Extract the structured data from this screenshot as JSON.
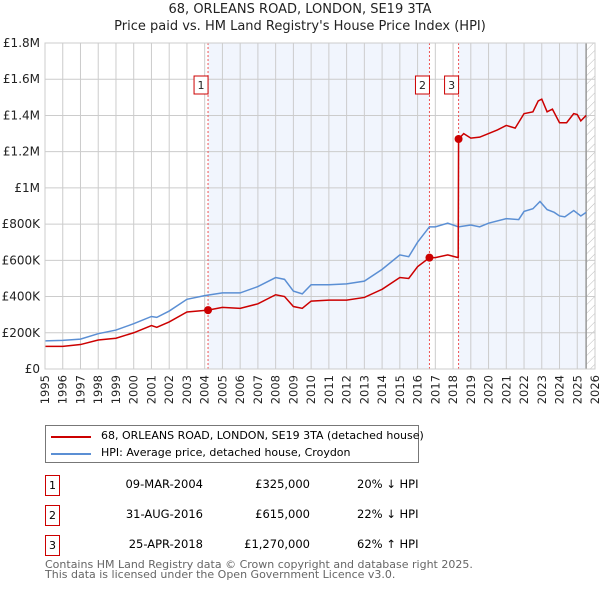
{
  "chart_data": {
    "type": "line",
    "title": "68, ORLEANS ROAD, LONDON, SE19 3TA",
    "subtitle": "Price paid vs. HM Land Registry's House Price Index (HPI)",
    "xlim": [
      1995,
      2026
    ],
    "ylim": [
      0,
      1800000
    ],
    "x_ticks": [
      "1995",
      "1996",
      "1997",
      "1998",
      "1999",
      "2000",
      "2001",
      "2002",
      "2003",
      "2004",
      "2005",
      "2006",
      "2007",
      "2008",
      "2009",
      "2010",
      "2011",
      "2012",
      "2013",
      "2014",
      "2015",
      "2016",
      "2017",
      "2018",
      "2019",
      "2020",
      "2021",
      "2022",
      "2023",
      "2024",
      "2025",
      "2026"
    ],
    "y_ticks": [
      {
        "v": 0,
        "label": "£0"
      },
      {
        "v": 200000,
        "label": "£200K"
      },
      {
        "v": 400000,
        "label": "£400K"
      },
      {
        "v": 600000,
        "label": "£600K"
      },
      {
        "v": 800000,
        "label": "£800K"
      },
      {
        "v": 1000000,
        "label": "£1M"
      },
      {
        "v": 1200000,
        "label": "£1.2M"
      },
      {
        "v": 1400000,
        "label": "£1.4M"
      },
      {
        "v": 1600000,
        "label": "£1.6M"
      },
      {
        "v": 1800000,
        "label": "£1.8M"
      }
    ],
    "grid": true,
    "series": [
      {
        "name": "68, ORLEANS ROAD, LONDON, SE19 3TA (detached house)",
        "color": "#cc0000",
        "x": [
          1995,
          1996,
          1997,
          1998,
          1999,
          2000,
          2001,
          2001.3,
          2002,
          2003,
          2004.19,
          2005,
          2006,
          2007,
          2008,
          2008.5,
          2009,
          2009.5,
          2010,
          2011,
          2012,
          2013,
          2014,
          2015,
          2015.5,
          2016,
          2016.67,
          2017,
          2017.7,
          2018.29,
          2018.31,
          2018.6,
          2019,
          2019.5,
          2020,
          2020.5,
          2021,
          2021.5,
          2022,
          2022.5,
          2022.8,
          2023,
          2023.3,
          2023.6,
          2024,
          2024.4,
          2024.8,
          2025,
          2025.2,
          2025.5
        ],
        "y": [
          125000,
          125000,
          135000,
          160000,
          170000,
          200000,
          240000,
          230000,
          260000,
          315000,
          325000,
          340000,
          335000,
          360000,
          410000,
          400000,
          345000,
          335000,
          375000,
          380000,
          380000,
          395000,
          440000,
          505000,
          500000,
          565000,
          615000,
          615000,
          630000,
          615000,
          1270000,
          1300000,
          1275000,
          1280000,
          1300000,
          1320000,
          1345000,
          1330000,
          1410000,
          1420000,
          1480000,
          1490000,
          1420000,
          1435000,
          1360000,
          1360000,
          1410000,
          1405000,
          1370000,
          1400000
        ]
      },
      {
        "name": "HPI: Average price, detached house, Croydon",
        "color": "#5b8fd4",
        "x": [
          1995,
          1996,
          1997,
          1998,
          1999,
          2000,
          2001,
          2001.3,
          2002,
          2003,
          2004,
          2005,
          2006,
          2007,
          2008,
          2008.5,
          2009,
          2009.5,
          2010,
          2011,
          2012,
          2013,
          2014,
          2015,
          2015.5,
          2016,
          2016.67,
          2017,
          2017.7,
          2018.3,
          2019,
          2019.5,
          2020,
          2021,
          2021.7,
          2022,
          2022.5,
          2022.9,
          2023.3,
          2023.7,
          2024,
          2024.3,
          2024.8,
          2025.2,
          2025.5
        ],
        "y": [
          155000,
          158000,
          165000,
          195000,
          215000,
          250000,
          290000,
          285000,
          320000,
          385000,
          405000,
          420000,
          420000,
          455000,
          505000,
          495000,
          430000,
          415000,
          465000,
          465000,
          470000,
          485000,
          550000,
          630000,
          620000,
          700000,
          785000,
          785000,
          805000,
          785000,
          795000,
          785000,
          805000,
          830000,
          825000,
          870000,
          885000,
          925000,
          880000,
          865000,
          845000,
          840000,
          875000,
          845000,
          865000
        ]
      }
    ],
    "sales": [
      {
        "label": "1",
        "x": 2004.19,
        "y": 325000
      },
      {
        "label": "2",
        "x": 2016.67,
        "y": 615000
      },
      {
        "label": "3",
        "x": 2018.31,
        "y": 1270000
      }
    ],
    "shaded_ranges": [
      [
        2004.19,
        2016.67
      ],
      [
        2018.31,
        2025.5
      ]
    ],
    "hatched_from": 2025.5
  },
  "table": [
    {
      "n": "1",
      "date": "09-MAR-2004",
      "price": "£325,000",
      "hpi": "20% ↓ HPI"
    },
    {
      "n": "2",
      "date": "31-AUG-2016",
      "price": "£615,000",
      "hpi": "22% ↓ HPI"
    },
    {
      "n": "3",
      "date": "25-APR-2018",
      "price": "£1,270,000",
      "hpi": "62% ↑ HPI"
    }
  ],
  "footer": {
    "line1": "Contains HM Land Registry data © Crown copyright and database right 2025.",
    "line2": "This data is licensed under the Open Government Licence v3.0."
  }
}
